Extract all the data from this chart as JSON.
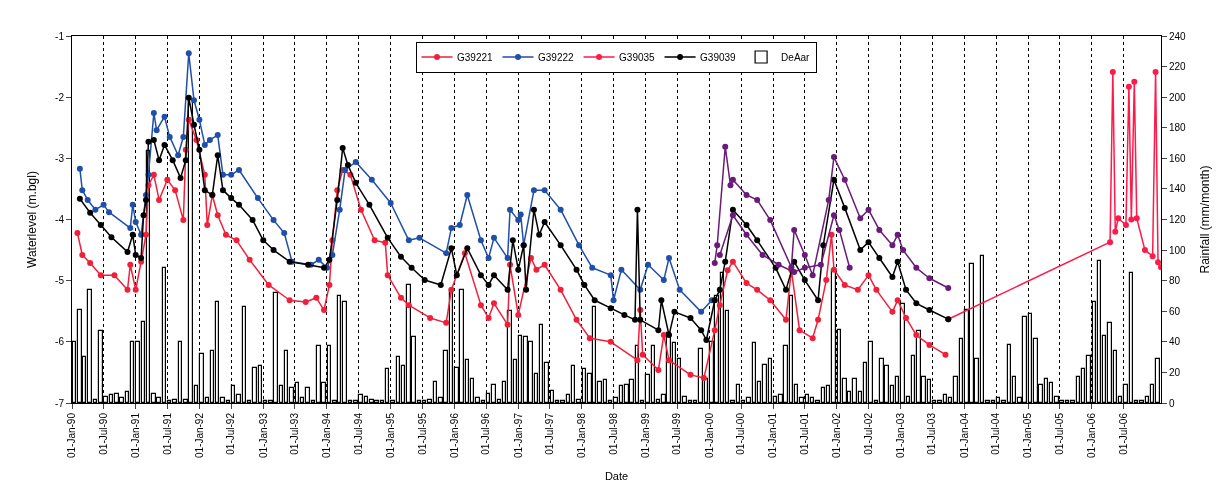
{
  "chart_data": {
    "type": "line",
    "xlabel": "Date",
    "ylabel": "Waterlevel (m.bgl)",
    "y2label": "Rainfall (mm/month)",
    "xlim": [
      "1990-01-01",
      "2007-02-01"
    ],
    "ylim": [
      -7,
      -1
    ],
    "y2lim": [
      0,
      240
    ],
    "yticks": [
      -1,
      -2,
      -3,
      -4,
      -5,
      -6,
      -7
    ],
    "y2ticks": [
      0,
      20,
      40,
      60,
      80,
      100,
      120,
      140,
      160,
      180,
      200,
      220,
      240
    ],
    "xticks": [
      {
        "value": "1990-01-01",
        "label": "01-Jan-90"
      },
      {
        "value": "1990-07-01",
        "label": "01-Jul-90"
      },
      {
        "value": "1991-01-01",
        "label": "01-Jan-91"
      },
      {
        "value": "1991-07-01",
        "label": "01-Jul-91"
      },
      {
        "value": "1992-01-01",
        "label": "01-Jan-92"
      },
      {
        "value": "1992-07-01",
        "label": "01-Jul-92"
      },
      {
        "value": "1993-01-01",
        "label": "01-Jan-93"
      },
      {
        "value": "1993-07-01",
        "label": "01-Jul-93"
      },
      {
        "value": "1994-01-01",
        "label": "01-Jan-94"
      },
      {
        "value": "1994-07-01",
        "label": "01-Jul-94"
      },
      {
        "value": "1995-01-01",
        "label": "01-Jan-95"
      },
      {
        "value": "1995-07-01",
        "label": "01-Jul-95"
      },
      {
        "value": "1996-01-01",
        "label": "01-Jan-96"
      },
      {
        "value": "1996-07-01",
        "label": "01-Jul-96"
      },
      {
        "value": "1997-01-01",
        "label": "01-Jan-97"
      },
      {
        "value": "1997-07-01",
        "label": "01-Jul-97"
      },
      {
        "value": "1998-01-01",
        "label": "01-Jan-98"
      },
      {
        "value": "1998-07-01",
        "label": "01-Jul-98"
      },
      {
        "value": "1999-01-01",
        "label": "01-Jan-99"
      },
      {
        "value": "1999-07-01",
        "label": "01-Jul-99"
      },
      {
        "value": "2000-01-01",
        "label": "01-Jan-00"
      },
      {
        "value": "2000-07-01",
        "label": "01-Jul-00"
      },
      {
        "value": "2001-01-01",
        "label": "01-Jan-01"
      },
      {
        "value": "2001-07-01",
        "label": "01-Jul-01"
      },
      {
        "value": "2002-01-01",
        "label": "01-Jan-02"
      },
      {
        "value": "2002-07-01",
        "label": "01-Jul-02"
      },
      {
        "value": "2003-01-01",
        "label": "01-Jan-03"
      },
      {
        "value": "2003-07-01",
        "label": "01-Jul-03"
      },
      {
        "value": "2004-01-01",
        "label": "01-Jan-04"
      },
      {
        "value": "2004-07-01",
        "label": "01-Jul-04"
      },
      {
        "value": "2005-01-01",
        "label": "01-Jan-05"
      },
      {
        "value": "2005-07-01",
        "label": "01-Jul-05"
      },
      {
        "value": "2006-01-01",
        "label": "01-Jan-06"
      },
      {
        "value": "2006-07-01",
        "label": "01-Jul-06"
      }
    ],
    "grid": "x",
    "legend": "top",
    "marker": "circle",
    "line_style": "solid",
    "series": [
      {
        "name": "G39221",
        "color": "#f0203a",
        "x": [
          "1990-02-01",
          "1990-03-01",
          "1990-04-15",
          "1990-06-15",
          "1990-09-01",
          "1990-11-15",
          "1990-12-01",
          "1991-01-01",
          "1991-02-01",
          "1991-03-01",
          "1991-03-15",
          "1991-04-15",
          "1991-05-15",
          "1991-07-01",
          "1991-08-15",
          "1991-10-01",
          "1991-10-15",
          "1991-11-01",
          "1991-12-15",
          "1992-02-01",
          "1992-02-15",
          "1992-03-15",
          "1992-04-15",
          "1992-06-01",
          "1992-08-01",
          "1992-10-15",
          "1993-02-01",
          "1993-06-01",
          "1993-09-01",
          "1993-11-01",
          "1993-12-15",
          "1994-01-15",
          "1994-02-01",
          "1994-03-01",
          "1994-04-01",
          "1994-05-15",
          "1994-07-15",
          "1994-10-01",
          "1994-12-01",
          "1994-12-15",
          "1995-03-01",
          "1995-04-15",
          "1995-08-15",
          "1995-11-15",
          "1995-12-15",
          "1996-03-01",
          "1996-06-01",
          "1996-07-15",
          "1996-08-15",
          "1996-11-01",
          "1996-11-15",
          "1997-01-01",
          "1997-03-15",
          "1997-04-15",
          "1997-06-01",
          "1997-09-01",
          "1997-12-01",
          "1998-02-15",
          "1998-06-15",
          "1998-11-15",
          "1998-12-01",
          "1998-12-15",
          "1999-03-15",
          "1999-04-15",
          "1999-05-15",
          "1999-09-15",
          "1999-12-01",
          "2000-02-01",
          "2000-03-01",
          "2000-04-15",
          "2000-05-15",
          "2000-08-01",
          "2000-10-01",
          "2000-12-15",
          "2001-03-15",
          "2001-04-15",
          "2001-06-01",
          "2001-08-15",
          "2001-09-15",
          "2001-11-01",
          "2001-12-01",
          "2001-12-15",
          "2002-02-15",
          "2002-05-01",
          "2002-07-01",
          "2002-08-15",
          "2002-11-15",
          "2002-12-15",
          "2003-02-01",
          "2003-04-01",
          "2003-06-15",
          "2003-09-15"
        ],
        "values": [
          -4.22,
          -4.58,
          -4.71,
          -4.91,
          -4.91,
          -5.15,
          -4.74,
          -5.15,
          -4.69,
          -4.25,
          -3.44,
          -3.27,
          -3.68,
          -3.35,
          -3.52,
          -4.01,
          -2.86,
          -2.37,
          -2.7,
          -3.27,
          -4.09,
          -3.6,
          -3.93,
          -4.25,
          -4.34,
          -4.66,
          -5.07,
          -5.32,
          -5.35,
          -5.28,
          -5.48,
          -5.07,
          -4.34,
          -3.52,
          -3.19,
          -3.27,
          -3.84,
          -4.34,
          -4.38,
          -4.91,
          -5.28,
          -5.4,
          -5.61,
          -5.69,
          -5.15,
          -4.55,
          -5.4,
          -5.61,
          -5.37,
          -5.72,
          -4.74,
          -5.56,
          -4.63,
          -4.82,
          -4.74,
          -5.15,
          -5.64,
          -5.94,
          -6.0,
          -6.3,
          -5.48,
          -6.21,
          -6.46,
          -5.89,
          -6.3,
          -6.54,
          -6.59,
          -5.81,
          -5.4,
          -4.83,
          -4.69,
          -5.04,
          -5.15,
          -5.32,
          -5.64,
          -4.83,
          -5.81,
          -5.94,
          -5.64,
          -4.99,
          -4.25,
          -4.82,
          -5.07,
          -5.15,
          -4.91,
          -5.15,
          -5.51,
          -5.32,
          -5.61,
          -5.89,
          -6.05,
          -6.21
        ]
      },
      {
        "name": "G39222",
        "color": "#1f4fa8",
        "x": [
          "1990-02-15",
          "1990-03-01",
          "1990-04-01",
          "1990-05-15",
          "1990-07-01",
          "1990-08-01",
          "1990-12-01",
          "1990-12-15",
          "1991-01-01",
          "1991-02-01",
          "1991-03-01",
          "1991-03-15",
          "1991-04-15",
          "1991-05-01",
          "1991-06-15",
          "1991-07-15",
          "1991-09-01",
          "1991-10-01",
          "1991-11-01",
          "1991-12-01",
          "1992-01-01",
          "1992-02-01",
          "1992-03-01",
          "1992-04-15",
          "1992-05-15",
          "1992-07-01",
          "1992-08-15",
          "1992-12-01",
          "1993-03-01",
          "1993-05-01",
          "1993-06-15",
          "1993-10-01",
          "1993-11-15",
          "1994-01-01",
          "1994-02-01",
          "1994-03-15",
          "1994-04-15",
          "1994-06-15",
          "1994-09-15",
          "1995-01-01",
          "1995-04-15",
          "1995-06-15",
          "1995-11-15",
          "1995-12-15",
          "1996-02-01",
          "1996-03-15",
          "1996-06-01",
          "1996-07-15",
          "1996-08-15",
          "1996-11-01",
          "1996-11-15",
          "1997-01-01",
          "1997-01-15",
          "1997-02-01",
          "1997-04-01",
          "1997-06-01",
          "1997-09-01",
          "1997-12-15",
          "1998-03-01",
          "1998-06-15",
          "1998-07-01",
          "1998-08-15",
          "1998-12-01",
          "1999-01-15",
          "1999-04-15",
          "1999-05-15",
          "1999-07-15",
          "1999-11-15",
          "2000-01-15"
        ],
        "values": [
          -3.17,
          -3.52,
          -3.68,
          -3.84,
          -3.76,
          -3.88,
          -4.14,
          -3.76,
          -4.04,
          -4.25,
          -3.6,
          -3.27,
          -2.26,
          -2.54,
          -2.32,
          -2.65,
          -2.95,
          -2.65,
          -1.28,
          -2.05,
          -2.37,
          -2.78,
          -2.7,
          -2.62,
          -3.27,
          -3.27,
          -3.19,
          -3.65,
          -4.01,
          -4.22,
          -4.69,
          -4.74,
          -4.66,
          -4.79,
          -4.58,
          -3.84,
          -3.19,
          -3.06,
          -3.35,
          -3.73,
          -4.34,
          -4.3,
          -4.55,
          -4.14,
          -4.09,
          -3.6,
          -4.34,
          -4.63,
          -4.3,
          -4.63,
          -3.84,
          -4.01,
          -3.92,
          -4.42,
          -3.52,
          -3.52,
          -3.84,
          -4.42,
          -4.79,
          -4.91,
          -5.32,
          -4.82,
          -5.15,
          -4.74,
          -4.99,
          -4.63,
          -5.15,
          -5.51,
          -5.32
        ]
      },
      {
        "name": "G39035",
        "color": "#ff1a4a",
        "x": [
          "2003-10-01",
          "2006-04-15",
          "2006-05-01",
          "2006-05-15",
          "2006-06-01",
          "2006-07-15",
          "2006-08-01",
          "2006-08-15",
          "2006-09-01",
          "2006-09-15",
          "2006-11-01",
          "2006-12-15",
          "2007-01-01",
          "2007-01-15",
          "2007-02-01"
        ],
        "values": [
          -5.63,
          -4.37,
          -1.59,
          -4.2,
          -3.98,
          -4.09,
          -1.83,
          -4.0,
          -1.75,
          -3.98,
          -4.5,
          -4.6,
          -1.59,
          -4.7,
          -4.78
        ]
      },
      {
        "name": "G39039",
        "color": "#000000",
        "x": [
          "1990-02-15",
          "1990-04-15",
          "1990-06-15",
          "1990-08-15",
          "1990-11-15",
          "1990-12-15",
          "1991-01-01",
          "1991-02-01",
          "1991-02-15",
          "1991-03-01",
          "1991-03-15",
          "1991-04-15",
          "1991-05-15",
          "1991-06-15",
          "1991-08-01",
          "1991-09-15",
          "1991-10-15",
          "1991-11-01",
          "1991-12-01",
          "1992-01-01",
          "1992-02-01",
          "1992-03-15",
          "1992-04-15",
          "1992-05-15",
          "1992-07-01",
          "1992-08-15",
          "1992-11-01",
          "1993-01-01",
          "1993-03-01",
          "1993-06-01",
          "1993-09-15",
          "1993-12-15",
          "1994-01-15",
          "1994-03-01",
          "1994-04-01",
          "1994-05-01",
          "1994-06-15",
          "1994-09-01",
          "1994-12-15",
          "1995-03-01",
          "1995-05-01",
          "1995-07-15",
          "1995-10-15",
          "1995-12-15",
          "1996-01-15",
          "1996-03-15",
          "1996-06-01",
          "1996-07-15",
          "1996-08-15",
          "1996-11-01",
          "1996-12-01",
          "1997-01-01",
          "1997-02-01",
          "1997-02-15",
          "1997-04-01",
          "1997-05-01",
          "1997-06-01",
          "1997-09-01",
          "1997-12-01",
          "1998-01-15",
          "1998-03-15",
          "1998-06-15",
          "1998-09-01",
          "1998-11-01",
          "1998-11-15",
          "1998-12-01",
          "1999-03-15",
          "1999-04-01",
          "1999-05-15",
          "1999-06-15",
          "1999-09-15",
          "1999-11-15",
          "1999-12-15",
          "2000-02-01",
          "2000-03-01",
          "2000-04-01",
          "2000-05-15",
          "2000-08-01",
          "2000-10-01",
          "2001-01-15",
          "2001-03-15",
          "2001-05-01",
          "2001-07-01",
          "2001-09-15",
          "2001-10-15",
          "2001-12-15",
          "2002-02-15",
          "2002-05-15",
          "2002-07-01",
          "2002-09-01",
          "2002-11-15",
          "2002-12-15",
          "2003-02-01",
          "2003-04-01",
          "2003-06-15",
          "2003-10-01"
        ],
        "values": [
          -3.66,
          -3.89,
          -4.09,
          -4.29,
          -4.53,
          -4.25,
          -4.58,
          -4.63,
          -3.93,
          -3.68,
          -2.73,
          -2.7,
          -3.03,
          -2.78,
          -3.03,
          -3.32,
          -3.03,
          -2.01,
          -2.45,
          -2.86,
          -3.52,
          -3.6,
          -2.95,
          -3.52,
          -3.65,
          -3.76,
          -4.01,
          -4.34,
          -4.5,
          -4.69,
          -4.74,
          -4.79,
          -4.66,
          -3.68,
          -2.83,
          -3.11,
          -3.4,
          -3.76,
          -4.3,
          -4.61,
          -4.79,
          -4.99,
          -5.07,
          -4.47,
          -4.91,
          -4.47,
          -4.91,
          -5.07,
          -4.91,
          -5.15,
          -4.34,
          -4.82,
          -4.42,
          -5.15,
          -3.84,
          -4.25,
          -4.04,
          -4.42,
          -4.82,
          -5.07,
          -5.32,
          -5.45,
          -5.56,
          -5.64,
          -3.84,
          -5.64,
          -5.81,
          -5.32,
          -5.89,
          -5.51,
          -5.61,
          -5.81,
          -5.97,
          -5.32,
          -5.15,
          -4.69,
          -3.84,
          -4.09,
          -4.34,
          -4.79,
          -5.15,
          -4.69,
          -4.99,
          -5.32,
          -4.42,
          -3.35,
          -3.81,
          -4.5,
          -4.37,
          -4.63,
          -4.94,
          -4.69,
          -5.15,
          -5.37,
          -5.48,
          -5.63
        ]
      },
      {
        "name": "DeAar",
        "color": "#ffffff",
        "type": "bar",
        "axis": "y2",
        "x": [
          "1990-01-15",
          "1990-02-15",
          "1990-03-15",
          "1990-04-15",
          "1990-05-15",
          "1990-06-15",
          "1990-07-15",
          "1990-08-15",
          "1990-09-15",
          "1990-10-15",
          "1990-11-15",
          "1990-12-15",
          "1991-01-15",
          "1991-02-15",
          "1991-03-15",
          "1991-04-15",
          "1991-05-15",
          "1991-06-15",
          "1991-07-15",
          "1991-08-15",
          "1991-09-15",
          "1991-10-15",
          "1991-11-15",
          "1991-12-15",
          "1992-01-15",
          "1992-02-15",
          "1992-03-15",
          "1992-04-15",
          "1992-05-15",
          "1992-06-15",
          "1992-07-15",
          "1992-08-15",
          "1992-09-15",
          "1992-10-15",
          "1992-11-15",
          "1992-12-15",
          "1993-01-15",
          "1993-02-15",
          "1993-03-15",
          "1993-04-15",
          "1993-05-15",
          "1993-06-15",
          "1993-07-15",
          "1993-08-15",
          "1993-09-15",
          "1993-10-15",
          "1993-11-15",
          "1993-12-15",
          "1994-01-15",
          "1994-02-15",
          "1994-03-15",
          "1994-04-15",
          "1994-05-15",
          "1994-06-15",
          "1994-07-15",
          "1994-08-15",
          "1994-09-15",
          "1994-10-15",
          "1994-11-15",
          "1994-12-15",
          "1995-01-15",
          "1995-02-15",
          "1995-03-15",
          "1995-04-15",
          "1995-05-15",
          "1995-06-15",
          "1995-07-15",
          "1995-08-15",
          "1995-09-15",
          "1995-10-15",
          "1995-11-15",
          "1995-12-15",
          "1996-01-15",
          "1996-02-15",
          "1996-03-15",
          "1996-04-15",
          "1996-05-15",
          "1996-06-15",
          "1996-07-15",
          "1996-08-15",
          "1996-09-15",
          "1996-10-15",
          "1996-11-15",
          "1996-12-15",
          "1997-01-15",
          "1997-02-15",
          "1997-03-15",
          "1997-04-15",
          "1997-05-15",
          "1997-06-15",
          "1997-07-15",
          "1997-08-15",
          "1997-09-15",
          "1997-10-15",
          "1997-11-15",
          "1997-12-15",
          "1998-01-15",
          "1998-02-15",
          "1998-03-15",
          "1998-04-15",
          "1998-05-15",
          "1998-06-15",
          "1998-07-15",
          "1998-08-15",
          "1998-09-15",
          "1998-10-15",
          "1998-11-15",
          "1998-12-15",
          "1999-01-15",
          "1999-02-15",
          "1999-03-15",
          "1999-04-15",
          "1999-05-15",
          "1999-06-15",
          "1999-07-15",
          "1999-08-15",
          "1999-09-15",
          "1999-10-15",
          "1999-11-15",
          "1999-12-15",
          "2000-01-15",
          "2000-02-15",
          "2000-03-15",
          "2000-04-15",
          "2000-05-15",
          "2000-06-15",
          "2000-07-15",
          "2000-08-15",
          "2000-09-15",
          "2000-10-15",
          "2000-11-15",
          "2000-12-15",
          "2001-01-15",
          "2001-02-15",
          "2001-03-15",
          "2001-04-15",
          "2001-05-15",
          "2001-06-15",
          "2001-07-15",
          "2001-08-15",
          "2001-09-15",
          "2001-10-15",
          "2001-11-15",
          "2001-12-15",
          "2002-01-15",
          "2002-02-15",
          "2002-03-15",
          "2002-04-15",
          "2002-05-15",
          "2002-06-15",
          "2002-07-15",
          "2002-08-15",
          "2002-09-15",
          "2002-10-15",
          "2002-11-15",
          "2002-12-15",
          "2003-01-15",
          "2003-02-15",
          "2003-03-15",
          "2003-04-15",
          "2003-05-15",
          "2003-06-15",
          "2003-07-15",
          "2003-08-15",
          "2003-09-15",
          "2003-10-15",
          "2003-11-15",
          "2003-12-15",
          "2004-01-15",
          "2004-02-15",
          "2004-03-15",
          "2004-04-15",
          "2004-05-15",
          "2004-06-15",
          "2004-07-15",
          "2004-08-15",
          "2004-09-15",
          "2004-10-15",
          "2004-11-15",
          "2004-12-15",
          "2005-01-15",
          "2005-02-15",
          "2005-03-15",
          "2005-04-15",
          "2005-05-15",
          "2005-06-15",
          "2005-07-15",
          "2005-08-15",
          "2005-09-15",
          "2005-10-15",
          "2005-11-15",
          "2005-12-15",
          "2006-01-15",
          "2006-02-15",
          "2006-03-15",
          "2006-04-15",
          "2006-05-15",
          "2006-06-15",
          "2006-07-15",
          "2006-08-15",
          "2006-09-15",
          "2006-10-15",
          "2006-11-15",
          "2006-12-15",
          "2007-01-15"
        ],
        "values": [
          40,
          61,
          30,
          74,
          2,
          47,
          4,
          5,
          6,
          3,
          7,
          40,
          40,
          53,
          165,
          6,
          3,
          88,
          1,
          2,
          40,
          2,
          198,
          11,
          32,
          3,
          34,
          66,
          3,
          1,
          11,
          5,
          63,
          1,
          23,
          24,
          1,
          1,
          72,
          11,
          34,
          10,
          13,
          3,
          10,
          1,
          37,
          13,
          37,
          1,
          70,
          66,
          1,
          1,
          5,
          4,
          2,
          1,
          1,
          22,
          1,
          30,
          24,
          77,
          43,
          1,
          1,
          2,
          14,
          3,
          34,
          74,
          23,
          74,
          28,
          16,
          3,
          1,
          6,
          12,
          2,
          14,
          60,
          28,
          44,
          43,
          40,
          19,
          51,
          26,
          8,
          1,
          1,
          5,
          24,
          2,
          22,
          19,
          63,
          14,
          15,
          1,
          3,
          11,
          12,
          15,
          37,
          1,
          18,
          37,
          2,
          5,
          46,
          39,
          29,
          4,
          1,
          1,
          35,
          16,
          40,
          70,
          85,
          60,
          1,
          12,
          1,
          3,
          39,
          14,
          25,
          29,
          4,
          5,
          37,
          70,
          12,
          3,
          5,
          3,
          1,
          10,
          11,
          87,
          48,
          16,
          7,
          16,
          7,
          26,
          40,
          1,
          29,
          24,
          11,
          17,
          65,
          4,
          31,
          47,
          17,
          15,
          1,
          1,
          5,
          3,
          17,
          42,
          61,
          91,
          29,
          96,
          1,
          1,
          3,
          1,
          38,
          17,
          3,
          56,
          58,
          42,
          12,
          16,
          13,
          4,
          1,
          1,
          1,
          17,
          22,
          31,
          66,
          93,
          44,
          52,
          34,
          4,
          12,
          85,
          1,
          1,
          4,
          12,
          29
        ]
      },
      {
        "color": "#6a1a7a",
        "x": [
          "2000-02-01",
          "2000-02-15",
          "2000-04-01",
          "2000-05-01",
          "2000-05-15",
          "2000-08-01",
          "2000-10-01",
          "2000-12-15",
          "2001-04-15",
          "2001-05-01",
          "2001-07-01",
          "2001-08-15",
          "2001-11-15",
          "2001-12-15",
          "2002-02-15",
          "2002-05-15",
          "2002-07-01",
          "2002-09-01",
          "2002-11-15",
          "2002-12-15",
          "2003-01-15",
          "2003-04-01",
          "2003-06-15",
          "2003-10-01"
        ],
        "values": [
          -4.71,
          -4.42,
          -2.81,
          -3.44,
          -3.35,
          -3.6,
          -3.68,
          -4.01,
          -4.78,
          -4.17,
          -4.58,
          -4.91,
          -3.68,
          -2.98,
          -3.35,
          -3.98,
          -3.84,
          -4.17,
          -4.42,
          -4.25,
          -4.5,
          -4.79,
          -4.96,
          -5.12
        ]
      },
      {
        "color": "#6a1a7a",
        "x": [
          "2000-03-01",
          "2000-05-15",
          "2000-08-01",
          "2000-11-01",
          "2001-02-01",
          "2001-05-01",
          "2001-07-01",
          "2001-10-01",
          "2001-12-15",
          "2002-01-15",
          "2002-03-15"
        ],
        "values": [
          -4.58,
          -3.93,
          -4.25,
          -4.58,
          -4.74,
          -4.86,
          -4.79,
          -4.74,
          -3.93,
          -4.17,
          -4.79
        ]
      }
    ]
  }
}
